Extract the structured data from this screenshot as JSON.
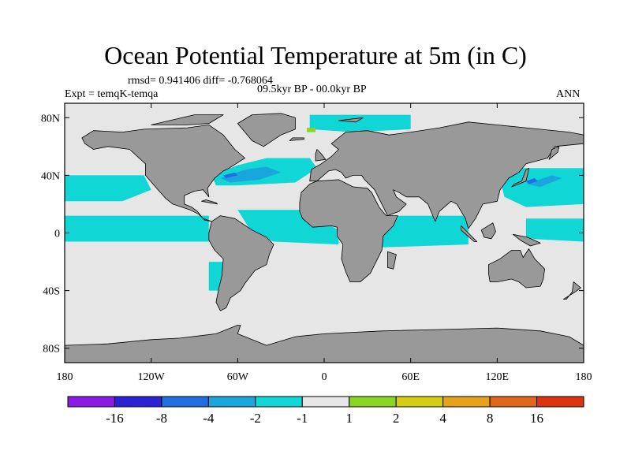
{
  "title": "Ocean Potential Temperature at 5m (in C)",
  "stats": "rmsd= 0.941406 diff= -0.768064",
  "left_label": "Expt = temqK-temqa",
  "center_label": "09.5kyr BP - 00.0kyr BP",
  "right_label": "ANN",
  "map": {
    "lon_range": [
      -180,
      180
    ],
    "lat_range": [
      -90,
      90
    ],
    "lon_ticks": [
      {
        "value": -180,
        "label": "180"
      },
      {
        "value": -120,
        "label": "120W"
      },
      {
        "value": -60,
        "label": "60W"
      },
      {
        "value": 0,
        "label": "0"
      },
      {
        "value": 60,
        "label": "60E"
      },
      {
        "value": 120,
        "label": "120E"
      },
      {
        "value": 180,
        "label": "180"
      }
    ],
    "lat_ticks": [
      {
        "value": 80,
        "label": "80N"
      },
      {
        "value": 40,
        "label": "40N"
      },
      {
        "value": 0,
        "label": "0"
      },
      {
        "value": -40,
        "label": "40S"
      },
      {
        "value": -80,
        "label": "80S"
      }
    ],
    "colors": {
      "ocean_neutral": "#e6e6e6",
      "land": "#999999",
      "minus_1_to_2": "#11d6d6",
      "minus_2_to_4": "#1aa6dd",
      "minus_4_to_8": "#1f6fe0",
      "plus_1_to_2": "#88d622"
    }
  },
  "colorbar": {
    "colors": [
      "#8c1ae6",
      "#2b22d6",
      "#1f6fe0",
      "#1aa6dd",
      "#11d6d6",
      "#e6e6e6",
      "#88d622",
      "#d6cc11",
      "#e6a21a",
      "#e0661a",
      "#dd3311"
    ],
    "labels": [
      "-16",
      "-8",
      "-4",
      "-2",
      "-1",
      "1",
      "2",
      "4",
      "8",
      "16"
    ]
  }
}
